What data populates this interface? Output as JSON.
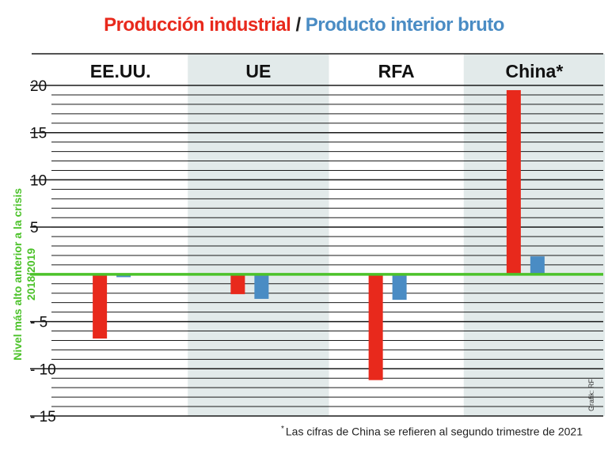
{
  "title": {
    "part1": "Producción industrial",
    "separator": "/",
    "part2": "Producto interior bruto",
    "part1_color": "#e8291c",
    "part2_color": "#4a8cc4"
  },
  "chart_data": {
    "type": "bar",
    "categories": [
      "EE.UU.",
      "UE",
      "RFA",
      "China*"
    ],
    "series": [
      {
        "name": "Producción industrial",
        "color": "#e8291c",
        "values": [
          -6.8,
          -2.1,
          -11.2,
          19.5
        ]
      },
      {
        "name": "Producto interior bruto",
        "color": "#4a8cc4",
        "values": [
          -0.3,
          -2.6,
          -2.7,
          1.9
        ]
      }
    ],
    "ylim": [
      -15,
      20
    ],
    "yticks": [
      20,
      15,
      10,
      5,
      -5,
      -10,
      -15
    ],
    "ytick_labels": [
      "20",
      "15",
      "10",
      "5",
      "- 5",
      "- 10",
      "- 15"
    ],
    "minor_step": 1,
    "ylabel_lines": [
      "Nivel más alto anterior a la crisis",
      "2018/2019"
    ],
    "baseline_color": "#4cc22a",
    "shaded_categories": [
      1,
      3
    ],
    "shade_color": "#e2eaea"
  },
  "footnote": {
    "marker": "*",
    "text": "Las cifras de China se refieren al segundo trimestre de 2021"
  },
  "credit": "Grafik: RF"
}
